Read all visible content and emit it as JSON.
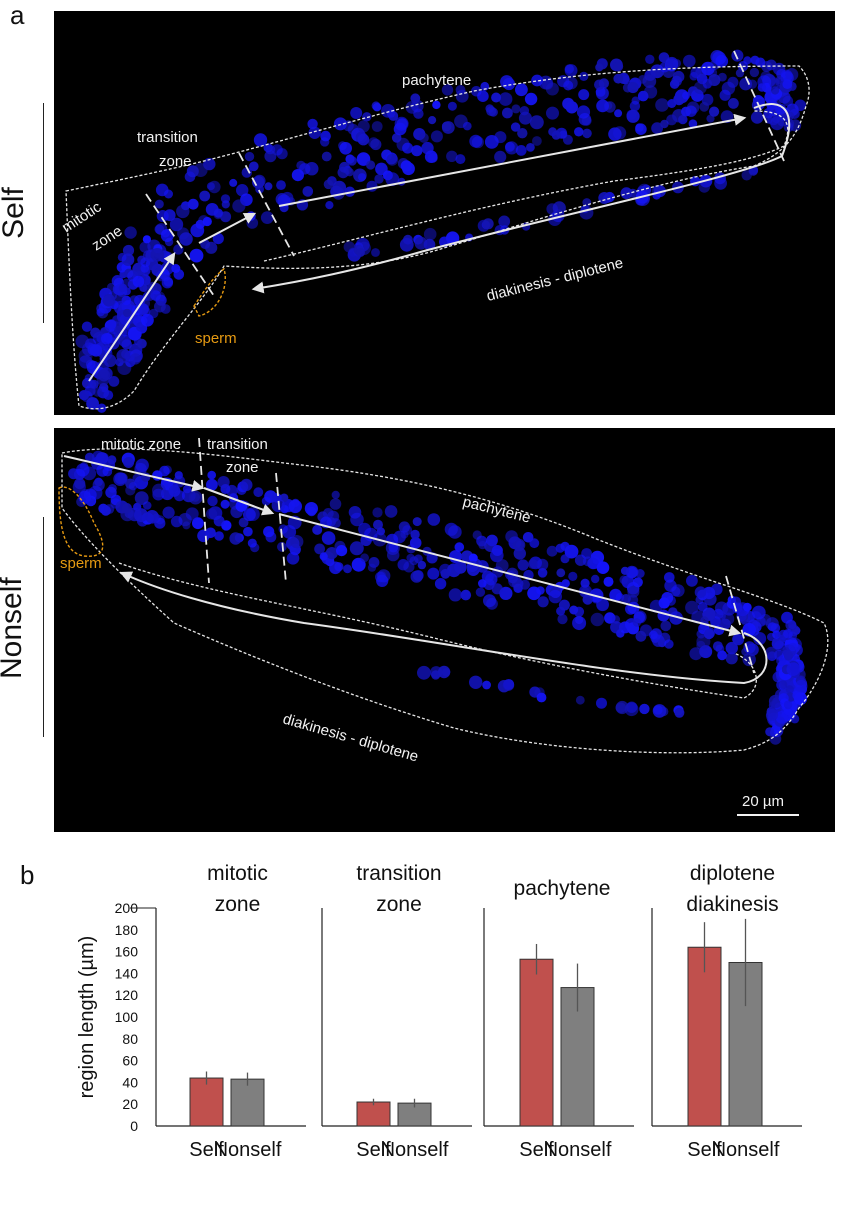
{
  "panel_a": {
    "letter": "a",
    "self": {
      "side_label": "Self",
      "labels": {
        "pachytene": "pachytene",
        "transition_line1": "transition",
        "transition_line2": "zone",
        "mitotic_line1": "mitotic",
        "mitotic_line2": "zone",
        "diakinesis": "diakinesis - diplotene",
        "sperm": "sperm"
      }
    },
    "nonself": {
      "side_label": "Nonself",
      "labels": {
        "mitotic": "mitotic zone",
        "transition_line1": "transition",
        "transition_line2": "zone",
        "pachytene": "pachytene",
        "sperm": "sperm",
        "diakinesis": "diakinesis - diplotene"
      },
      "scale_bar": "20 µm"
    },
    "colors": {
      "nuclei": "#1a1aff",
      "outline": "#e6e6e6",
      "sperm": "#e69a12",
      "background": "#000000"
    }
  },
  "panel_b": {
    "letter": "b",
    "chart_data": {
      "type": "bar",
      "ylabel": "region length (µm)",
      "ylim": [
        0,
        200
      ],
      "yticks": [
        0,
        20,
        40,
        60,
        80,
        100,
        120,
        140,
        160,
        180,
        200
      ],
      "categories": [
        "Self",
        "Nonself"
      ],
      "colors": {
        "Self": "#c0504d",
        "Nonself": "#7f7f7f"
      },
      "panels": [
        {
          "title": "mitotic\nzone",
          "values": [
            44,
            43
          ],
          "errors": [
            6,
            6
          ]
        },
        {
          "title": "transition\nzone",
          "values": [
            22,
            21
          ],
          "errors": [
            3,
            4
          ]
        },
        {
          "title": "pachytene",
          "values": [
            153,
            127
          ],
          "errors": [
            14,
            22
          ]
        },
        {
          "title": "diplotene\ndiakinesis",
          "values": [
            164,
            150
          ],
          "errors": [
            23,
            40
          ]
        }
      ]
    }
  }
}
